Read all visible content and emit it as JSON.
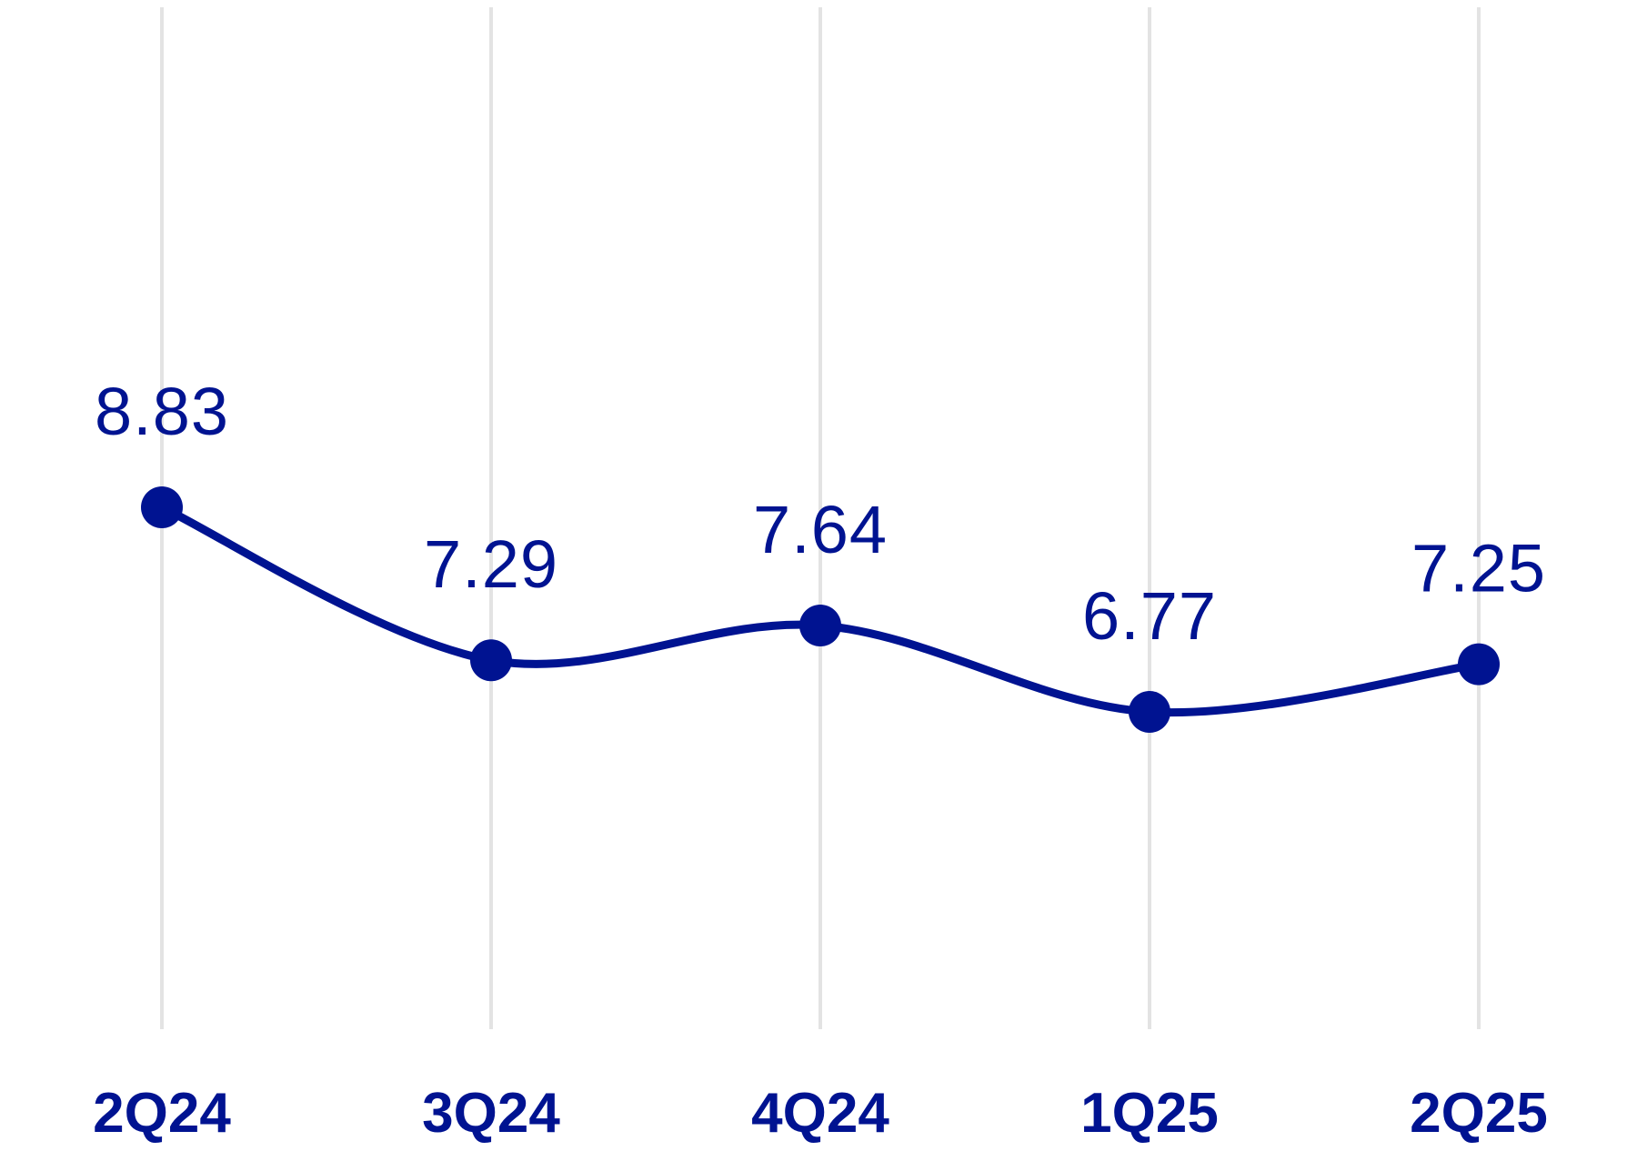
{
  "chart_data": {
    "type": "line",
    "categories": [
      "2Q24",
      "3Q24",
      "4Q24",
      "1Q25",
      "2Q25"
    ],
    "series": [
      {
        "values": [
          8.83,
          7.29,
          7.64,
          6.77,
          7.25
        ],
        "data_labels": [
          "8.83",
          "7.29",
          "7.64",
          "6.77",
          "7.25"
        ]
      }
    ],
    "title": "",
    "xlabel": "",
    "ylabel": "",
    "y_axis_visible": false,
    "grid": "vertical",
    "legend": "none",
    "smooth": true,
    "colors": {
      "series": "#001391",
      "grid": "#e3e3e3",
      "text": "#001391"
    }
  }
}
